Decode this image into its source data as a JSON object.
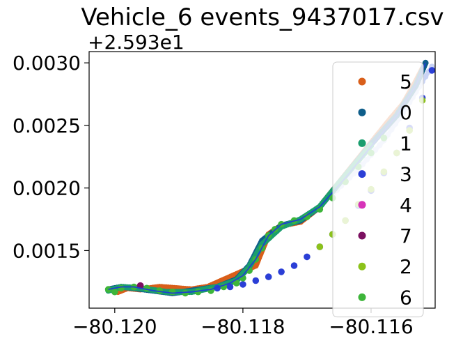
{
  "chart_data": {
    "type": "scatter",
    "title": "Vehicle_6 events_9437017.csv",
    "xlabel": "",
    "ylabel": "",
    "y_offset_text": "+2.593e1",
    "xlim": [
      -80.1204,
      -80.115
    ],
    "ylim": [
      0.00104,
      0.00309
    ],
    "x_ticks": [
      -80.12,
      -80.118,
      -80.116
    ],
    "x_tick_labels": [
      "−80.120",
      "−80.118",
      "−80.116"
    ],
    "y_ticks": [
      0.0015,
      0.002,
      0.0025,
      0.003
    ],
    "y_tick_labels": [
      "0.0015",
      "0.0020",
      "0.0025",
      "0.0030"
    ],
    "grid": false,
    "legend_position": "right",
    "series": [
      {
        "name": "5",
        "color": "#d95f1a",
        "kind": "dense",
        "points": [
          [
            -80.11995,
            0.00117
          ],
          [
            -80.1198,
            0.0012
          ],
          [
            -80.1196,
            0.00119
          ],
          [
            -80.1193,
            0.00121
          ],
          [
            -80.1188,
            0.00119
          ],
          [
            -80.11855,
            0.00121
          ],
          [
            -80.1178,
            0.00138
          ],
          [
            -80.1176,
            0.00163
          ],
          [
            -80.1174,
            0.0017
          ],
          [
            -80.1171,
            0.00173
          ],
          [
            -80.1168,
            0.00185
          ],
          [
            -80.1157,
            0.00255
          ],
          [
            -80.1155,
            0.00267
          ],
          [
            -80.1153,
            0.00285
          ],
          [
            -80.1152,
            0.00295
          ]
        ]
      },
      {
        "name": "0",
        "color": "#0f5e8a",
        "kind": "dense",
        "points": [
          [
            -80.1201,
            0.00119
          ],
          [
            -80.1199,
            0.00121
          ],
          [
            -80.1197,
            0.0012
          ],
          [
            -80.1194,
            0.00118
          ],
          [
            -80.1191,
            0.00116
          ],
          [
            -80.1188,
            0.00118
          ],
          [
            -80.1184,
            0.00121
          ],
          [
            -80.1181,
            0.00127
          ],
          [
            -80.1179,
            0.00138
          ],
          [
            -80.1177,
            0.00158
          ],
          [
            -80.1174,
            0.0017
          ],
          [
            -80.1171,
            0.00174
          ],
          [
            -80.1168,
            0.00185
          ],
          [
            -80.1164,
            0.0021
          ],
          [
            -80.116,
            0.00235
          ],
          [
            -80.1156,
            0.00258
          ],
          [
            -80.1153,
            0.00282
          ],
          [
            -80.11515,
            0.003
          ]
        ]
      },
      {
        "name": "1",
        "color": "#1a9e6e",
        "kind": "dense",
        "points": [
          [
            -80.1201,
            0.00118
          ],
          [
            -80.1199,
            0.00121
          ],
          [
            -80.1196,
            0.0012
          ],
          [
            -80.1192,
            0.00117
          ],
          [
            -80.1188,
            0.00117
          ],
          [
            -80.1184,
            0.00121
          ],
          [
            -80.1181,
            0.00126
          ],
          [
            -80.1179,
            0.00137
          ],
          [
            -80.1177,
            0.00155
          ],
          [
            -80.1174,
            0.00169
          ],
          [
            -80.1171,
            0.00175
          ],
          [
            -80.1168,
            0.00185
          ],
          [
            -80.1165,
            0.00204
          ],
          [
            -80.1162,
            0.00222
          ],
          [
            -80.116,
            0.00234
          ]
        ]
      },
      {
        "name": "3",
        "color": "#2b3fd6",
        "kind": "markers",
        "points": [
          [
            -80.1184,
            0.0012
          ],
          [
            -80.1182,
            0.00121
          ],
          [
            -80.118,
            0.00123
          ],
          [
            -80.1178,
            0.00126
          ],
          [
            -80.1176,
            0.00129
          ],
          [
            -80.1174,
            0.00133
          ],
          [
            -80.1172,
            0.00138
          ],
          [
            -80.117,
            0.00145
          ],
          [
            -80.1168,
            0.00153
          ],
          [
            -80.1166,
            0.00163
          ],
          [
            -80.1164,
            0.00174
          ],
          [
            -80.1162,
            0.00186
          ],
          [
            -80.116,
            0.00198
          ],
          [
            -80.1158,
            0.00212
          ],
          [
            -80.1156,
            0.00228
          ],
          [
            -80.1154,
            0.00248
          ],
          [
            -80.1152,
            0.00272
          ],
          [
            -80.11505,
            0.00294
          ]
        ]
      },
      {
        "name": "4",
        "color": "#d633b8",
        "kind": "single",
        "points": [
          [
            -80.1196,
            0.00122
          ]
        ]
      },
      {
        "name": "7",
        "color": "#7b1060",
        "kind": "single",
        "points": [
          [
            -80.1196,
            0.00122
          ]
        ]
      },
      {
        "name": "2",
        "color": "#8cc21a",
        "kind": "markers",
        "points": [
          [
            -80.1168,
            0.00153
          ],
          [
            -80.1166,
            0.00163
          ],
          [
            -80.1164,
            0.00174
          ],
          [
            -80.1162,
            0.00187
          ],
          [
            -80.116,
            0.00199
          ],
          [
            -80.1158,
            0.00213
          ],
          [
            -80.1156,
            0.00228
          ],
          [
            -80.1154,
            0.00246
          ],
          [
            -80.1152,
            0.0027
          ]
        ]
      },
      {
        "name": "6",
        "color": "#3db53a",
        "kind": "markers",
        "points": [
          [
            -80.1201,
            0.00119
          ],
          [
            -80.12,
            0.00117
          ],
          [
            -80.1199,
            0.0012
          ],
          [
            -80.1197,
            0.00121
          ],
          [
            -80.1195,
            0.0012
          ],
          [
            -80.1193,
            0.00118
          ],
          [
            -80.1191,
            0.00117
          ],
          [
            -80.1189,
            0.00116
          ],
          [
            -80.1187,
            0.00117
          ],
          [
            -80.1185,
            0.00118
          ],
          [
            -80.1183,
            0.00121
          ],
          [
            -80.1181,
            0.00124
          ],
          [
            -80.118,
            0.00128
          ],
          [
            -80.1179,
            0.00134
          ],
          [
            -80.1178,
            0.00143
          ],
          [
            -80.1177,
            0.00152
          ],
          [
            -80.1176,
            0.00162
          ],
          [
            -80.1175,
            0.00167
          ],
          [
            -80.1174,
            0.00171
          ],
          [
            -80.1172,
            0.00174
          ],
          [
            -80.117,
            0.00177
          ],
          [
            -80.1168,
            0.00183
          ],
          [
            -80.1166,
            0.00192
          ],
          [
            -80.1164,
            0.00205
          ],
          [
            -80.1162,
            0.00217
          ],
          [
            -80.116,
            0.00228
          ],
          [
            -80.1158,
            0.0024
          ]
        ]
      }
    ],
    "track_line": {
      "color": "#1f3fd0",
      "points": [
        [
          -80.1201,
          0.00119
        ],
        [
          -80.1199,
          0.00121
        ],
        [
          -80.1197,
          0.00121
        ],
        [
          -80.1194,
          0.00118
        ],
        [
          -80.1191,
          0.00116
        ],
        [
          -80.1188,
          0.00117
        ],
        [
          -80.1185,
          0.00119
        ],
        [
          -80.1182,
          0.00124
        ],
        [
          -80.118,
          0.0013
        ],
        [
          -80.1178,
          0.00143
        ],
        [
          -80.1176,
          0.00162
        ],
        [
          -80.1174,
          0.00171
        ],
        [
          -80.1171,
          0.00175
        ],
        [
          -80.1168,
          0.00185
        ],
        [
          -80.1164,
          0.00208
        ],
        [
          -80.116,
          0.00233
        ],
        [
          -80.1156,
          0.00258
        ],
        [
          -80.1153,
          0.00282
        ],
        [
          -80.11515,
          0.003
        ]
      ]
    },
    "faint_line": {
      "color": "#c9d3f5",
      "points": [
        [
          -80.1166,
          0.00195
        ],
        [
          -80.1162,
          0.00215
        ],
        [
          -80.1158,
          0.00238
        ],
        [
          -80.1155,
          0.0026
        ],
        [
          -80.1152,
          0.00285
        ],
        [
          -80.11505,
          0.00297
        ]
      ]
    }
  }
}
